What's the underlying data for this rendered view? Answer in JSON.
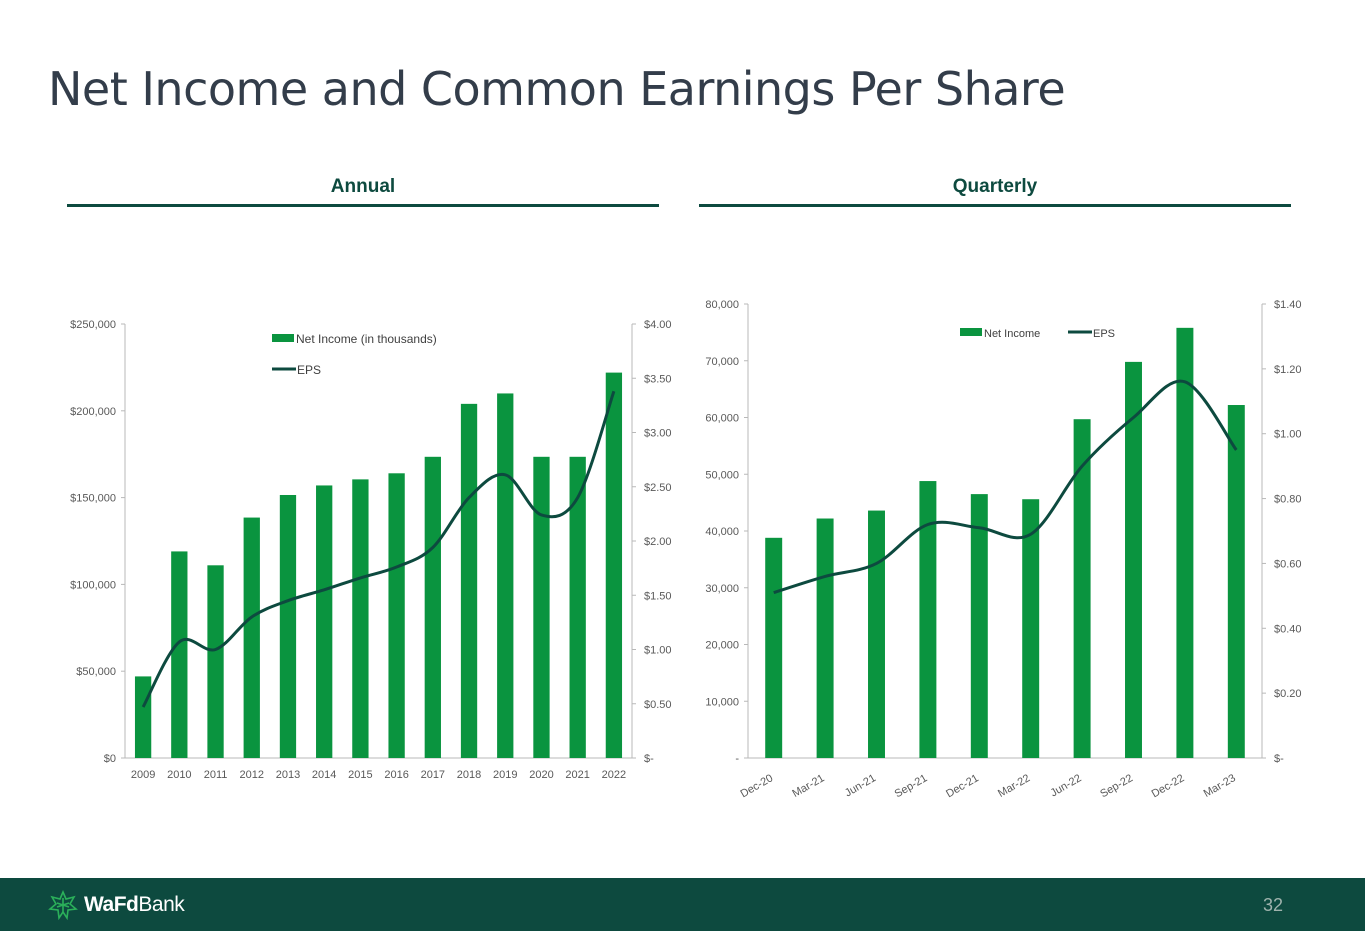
{
  "title": "Net Income and Common Earnings Per Share",
  "sections": {
    "annual": "Annual",
    "quarterly": "Quarterly"
  },
  "footer": {
    "brand_bold": "WaFd",
    "brand_regular": "Bank",
    "page_number": "32"
  },
  "colors": {
    "bar": "#0a943f",
    "line": "#0d4a3f",
    "title": "#333d4a",
    "accent": "#0d4a3f",
    "footer": "#0d4a3f"
  },
  "chart_data": [
    {
      "type": "bar",
      "categories": [
        "2009",
        "2010",
        "2011",
        "2012",
        "2013",
        "2014",
        "2015",
        "2016",
        "2017",
        "2018",
        "2019",
        "2020",
        "2021",
        "2022"
      ],
      "series": [
        {
          "name": "Net Income (in thousands)",
          "type": "bar",
          "axis": "left",
          "values": [
            47000,
            119000,
            111000,
            138500,
            151500,
            157000,
            160500,
            164000,
            173500,
            204000,
            210000,
            173500,
            173500,
            222000
          ]
        },
        {
          "name": "EPS",
          "type": "line",
          "axis": "right",
          "values": [
            0.47,
            1.07,
            1.0,
            1.3,
            1.45,
            1.55,
            1.66,
            1.76,
            1.94,
            2.4,
            2.61,
            2.24,
            2.4,
            3.38
          ]
        }
      ],
      "left_axis": {
        "min": 0,
        "max": 250000,
        "ticks": [
          "$0",
          "$50,000",
          "$100,000",
          "$150,000",
          "$200,000",
          "$250,000"
        ]
      },
      "right_axis": {
        "min": 0,
        "max": 4.0,
        "ticks": [
          "$-",
          "$0.50",
          "$1.00",
          "$1.50",
          "$2.00",
          "$2.50",
          "$3.00",
          "$3.50",
          "$4.00"
        ]
      },
      "legend": "top-center, stacked"
    },
    {
      "type": "bar",
      "categories": [
        "Dec-20",
        "Mar-21",
        "Jun-21",
        "Sep-21",
        "Dec-21",
        "Mar-22",
        "Jun-22",
        "Sep-22",
        "Dec-22",
        "Mar-23"
      ],
      "series": [
        {
          "name": "Net Income",
          "type": "bar",
          "axis": "left",
          "values": [
            38800,
            42200,
            43600,
            48800,
            46500,
            45600,
            59700,
            69800,
            75800,
            62200
          ]
        },
        {
          "name": "EPS",
          "type": "line",
          "axis": "right",
          "values": [
            0.51,
            0.56,
            0.6,
            0.72,
            0.71,
            0.69,
            0.9,
            1.05,
            1.16,
            0.95
          ]
        }
      ],
      "left_axis": {
        "min": 0,
        "max": 80000,
        "ticks": [
          "-",
          "10,000",
          "20,000",
          "30,000",
          "40,000",
          "50,000",
          "60,000",
          "70,000",
          "80,000"
        ]
      },
      "right_axis": {
        "min": 0,
        "max": 1.4,
        "ticks": [
          "$-",
          "$0.20",
          "$0.40",
          "$0.60",
          "$0.80",
          "$1.00",
          "$1.20",
          "$1.40"
        ]
      },
      "legend": "top-center, inline"
    }
  ]
}
